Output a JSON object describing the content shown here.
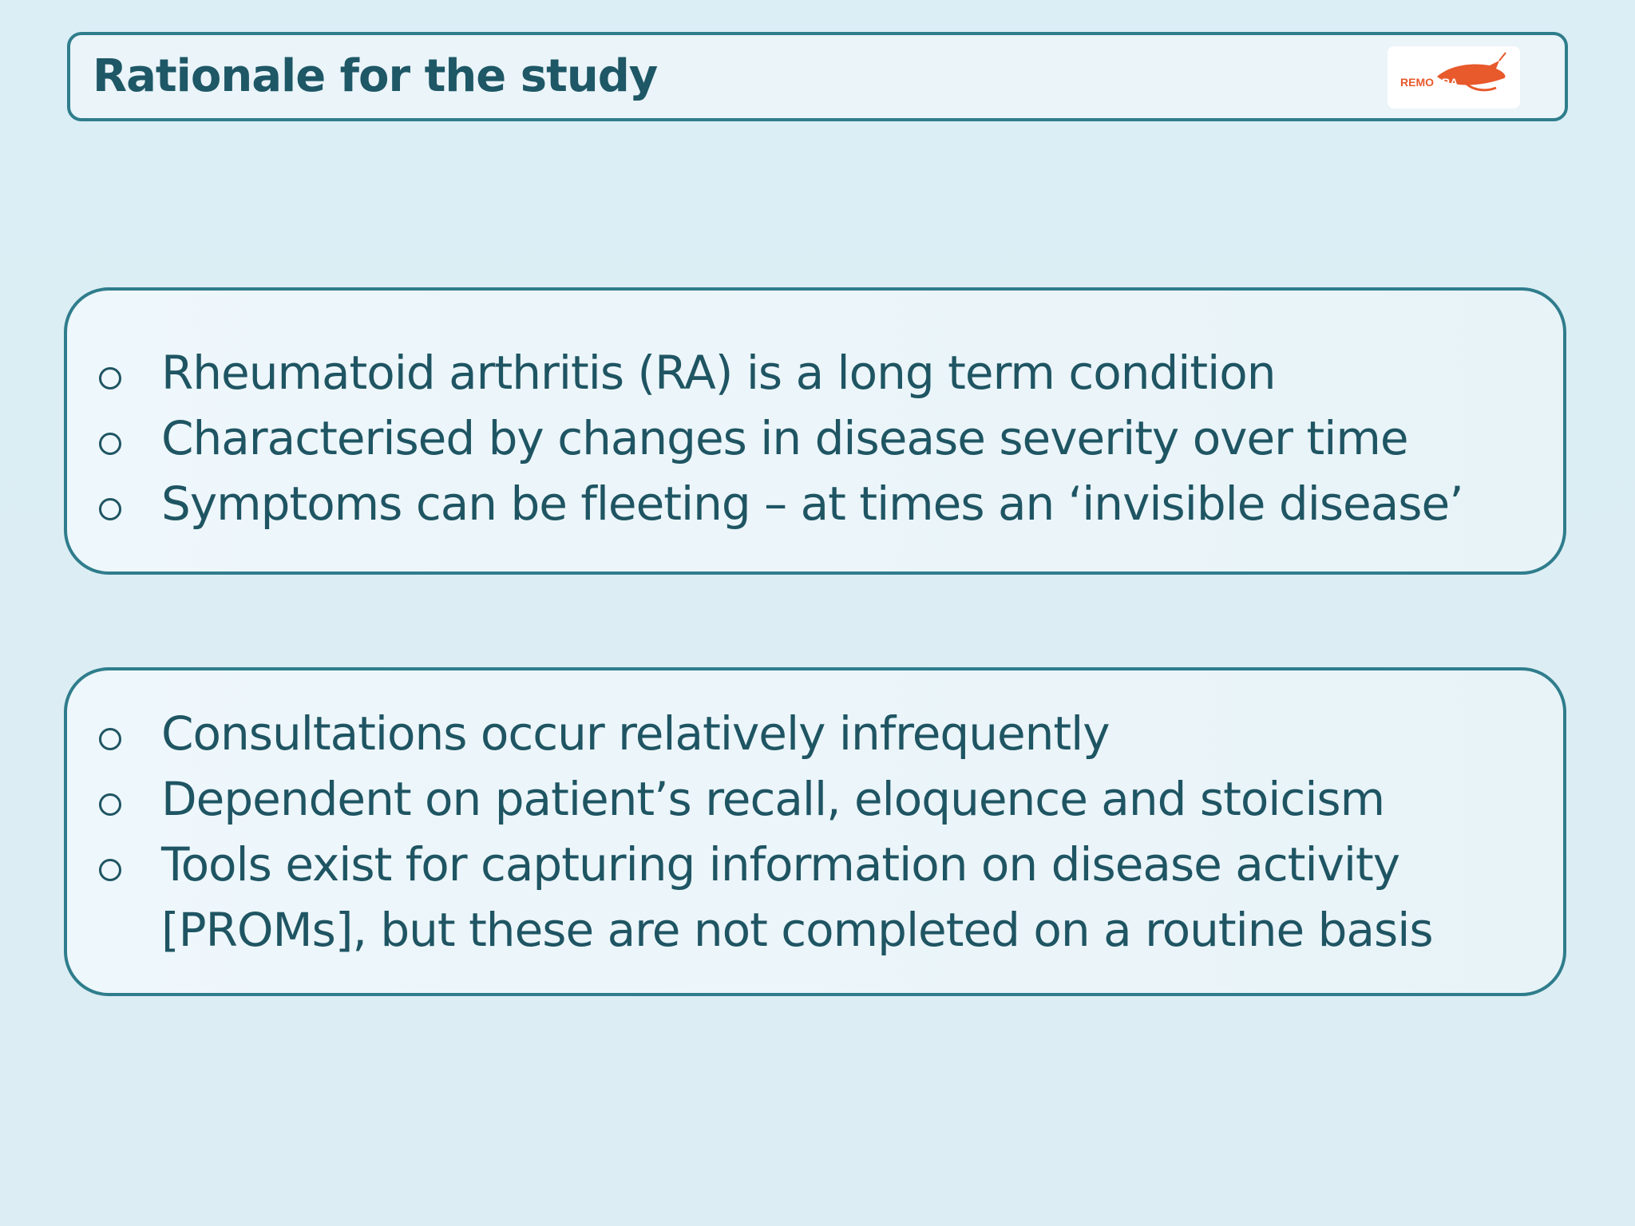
{
  "slide": {
    "title": "Rationale for the study",
    "logo": {
      "text_left": "REMO",
      "text_right": "RA",
      "color": "#e8592b"
    }
  },
  "box_one": {
    "items": [
      {
        "text": "Rheumatoid arthritis (RA) is a long term condition"
      },
      {
        "text": "Characterised by changes in disease severity over time"
      },
      {
        "text": "Symptoms can be fleeting –  at times an ‘invisible disease’"
      }
    ]
  },
  "box_two": {
    "items": [
      {
        "text": "Consultations occur relatively infrequently"
      },
      {
        "text": "Dependent on patient’s recall, eloquence and stoicism"
      },
      {
        "text": "Tools exist for capturing information on disease activity\n[PROMs], but these are not completed on a routine basis"
      }
    ]
  },
  "colors": {
    "background": "#dbeef5",
    "border": "#2f7d8c",
    "text": "#1f5563",
    "title": "#1e5766",
    "logo_accent": "#e8592b"
  }
}
